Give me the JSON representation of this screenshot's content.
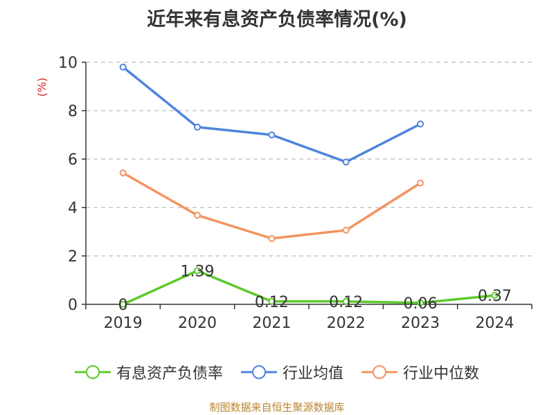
{
  "chart_data": {
    "type": "line",
    "title": "近年来有息资产负债率情况(%)",
    "ylabel": "(%)",
    "xlabel": "",
    "categories": [
      "2019",
      "2020",
      "2021",
      "2022",
      "2023",
      "2024"
    ],
    "ylim": [
      0,
      10
    ],
    "yticks": [
      0,
      2,
      4,
      6,
      8,
      10
    ],
    "grid": true,
    "legend_position": "bottom",
    "series": [
      {
        "name": "有息资产负债率",
        "color": "#5cc92b",
        "values": [
          0,
          1.39,
          0.12,
          0.12,
          0.06,
          0.37
        ],
        "labels": [
          "0",
          "1.39",
          "0.12",
          "0.12",
          "0.06",
          "0.37"
        ]
      },
      {
        "name": "行业均值",
        "color": "#4e84de",
        "values": [
          9.8,
          7.32,
          7.0,
          5.88,
          7.45,
          null
        ]
      },
      {
        "name": "行业中位数",
        "color": "#f39461",
        "values": [
          5.43,
          3.68,
          2.72,
          3.06,
          5.01,
          null
        ]
      }
    ]
  },
  "source": "制图数据来自恒生聚源数据库"
}
